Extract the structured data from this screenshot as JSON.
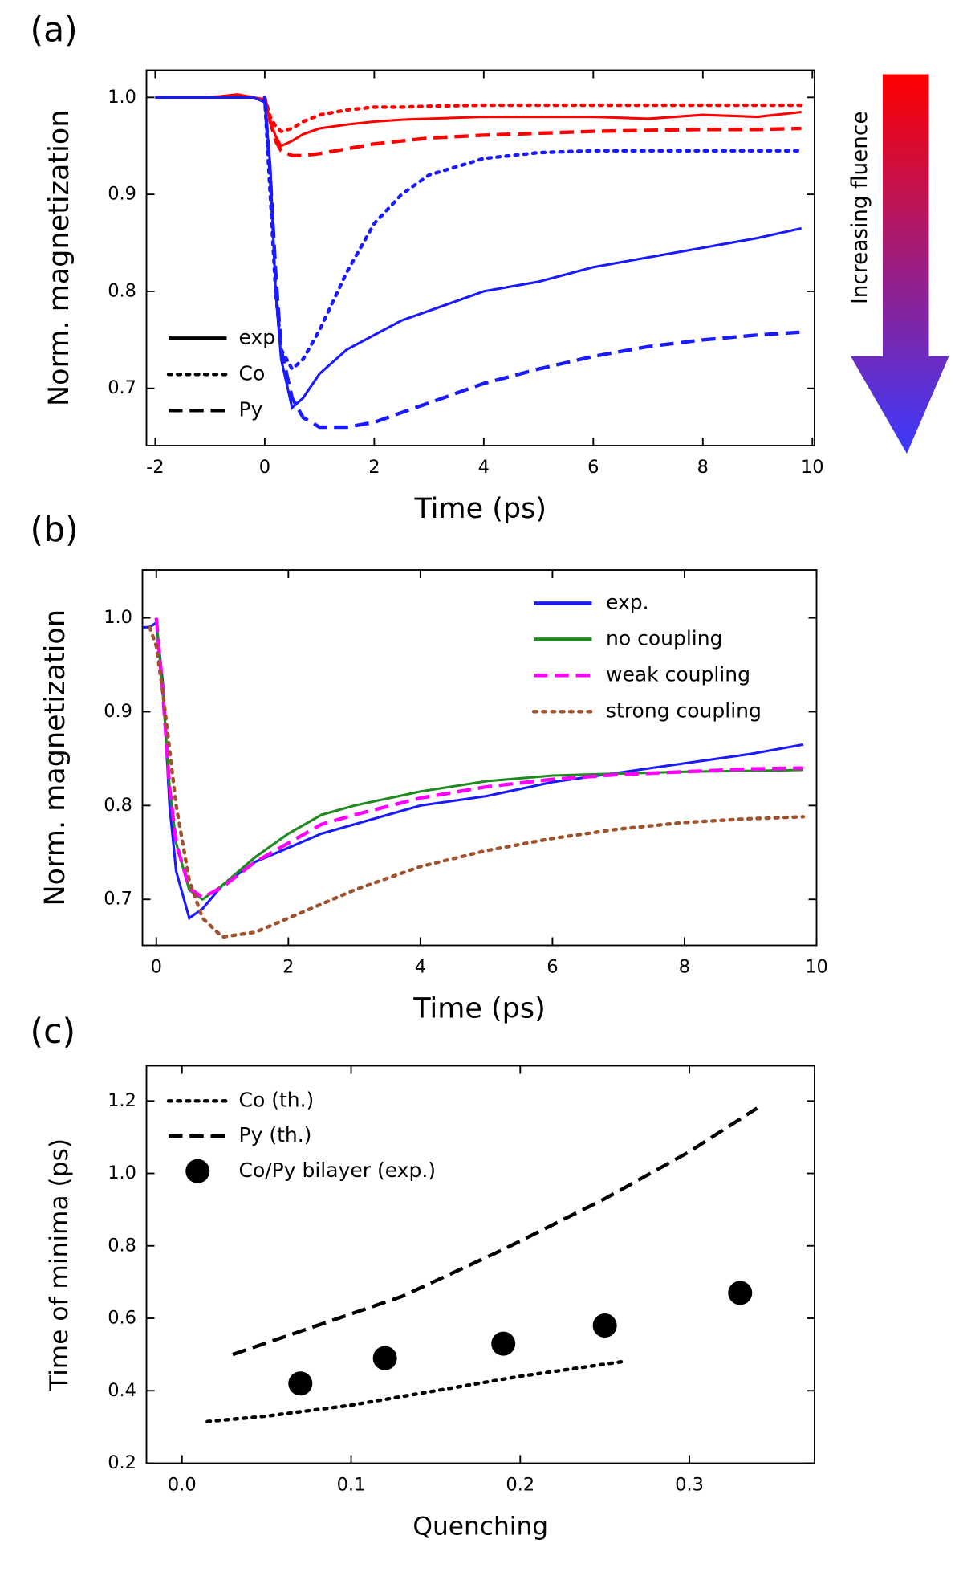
{
  "chart_data": [
    {
      "type": "line",
      "panel_label": "(a)",
      "xlabel": "Time (ps)",
      "ylabel": "Norm. magnetization",
      "xlim": [
        -2.16,
        10.04
      ],
      "ylim": [
        0.641,
        1.028
      ],
      "xticks": [
        -2,
        0,
        2,
        4,
        6,
        8,
        10
      ],
      "yticks": [
        0.7,
        0.8,
        0.9,
        {
          "value": 1.0,
          "label": "1.0"
        }
      ],
      "legend": "lower left",
      "legend_color": "#000000",
      "colorbar": {
        "label": "Increasing fluence",
        "colors": [
          "#ff0000",
          "#3a3aff"
        ]
      },
      "x": [
        -2,
        -1.5,
        -1,
        -0.5,
        -0.2,
        0,
        0.1,
        0.2,
        0.3,
        0.5,
        0.7,
        1,
        1.5,
        2,
        2.5,
        3,
        4,
        5,
        6,
        7,
        8,
        9,
        9.8
      ],
      "series": [
        {
          "name": "exp",
          "color": "#ff0000",
          "linestyle": "solid",
          "values": [
            1.0,
            1.0,
            1.0,
            1.003,
            1.0,
            0.998,
            0.975,
            0.96,
            0.95,
            0.955,
            0.962,
            0.968,
            0.972,
            0.975,
            0.977,
            0.978,
            0.98,
            0.98,
            0.98,
            0.978,
            0.982,
            0.98,
            0.985
          ]
        },
        {
          "name": "Co",
          "color": "#ff0000",
          "linestyle": "dotted",
          "values": [
            null,
            null,
            null,
            null,
            null,
            1.0,
            0.98,
            0.97,
            0.965,
            0.968,
            0.975,
            0.982,
            0.987,
            0.99,
            0.99,
            0.991,
            0.992,
            0.992,
            0.992,
            0.992,
            0.992,
            0.992,
            0.992
          ]
        },
        {
          "name": "Py",
          "color": "#ff0000",
          "linestyle": "dashed",
          "values": [
            null,
            null,
            null,
            null,
            null,
            1.0,
            0.975,
            0.955,
            0.945,
            0.94,
            0.94,
            0.942,
            0.947,
            0.952,
            0.955,
            0.958,
            0.961,
            0.963,
            0.965,
            0.966,
            0.967,
            0.967,
            0.968
          ]
        },
        {
          "name": "exp",
          "color": "#1a1aff",
          "linestyle": "solid",
          "values": [
            1.0,
            1.0,
            1.0,
            1.0,
            1.0,
            0.995,
            0.93,
            0.8,
            0.73,
            0.68,
            0.69,
            0.715,
            0.74,
            0.755,
            0.77,
            0.78,
            0.8,
            0.81,
            0.825,
            0.835,
            0.845,
            0.855,
            0.865
          ]
        },
        {
          "name": "Co",
          "color": "#1a1aff",
          "linestyle": "dotted",
          "values": [
            null,
            null,
            null,
            null,
            null,
            1.0,
            0.9,
            0.8,
            0.74,
            0.72,
            0.73,
            0.76,
            0.82,
            0.87,
            0.9,
            0.92,
            0.937,
            0.943,
            0.945,
            0.945,
            0.945,
            0.945,
            0.945
          ]
        },
        {
          "name": "Py",
          "color": "#1a1aff",
          "linestyle": "dashed",
          "values": [
            null,
            null,
            null,
            null,
            null,
            1.0,
            0.92,
            0.82,
            0.74,
            0.69,
            0.67,
            0.66,
            0.66,
            0.665,
            0.675,
            0.685,
            0.705,
            0.72,
            0.733,
            0.743,
            0.75,
            0.755,
            0.758
          ]
        }
      ]
    },
    {
      "type": "line",
      "panel_label": "(b)",
      "xlabel": "Time (ps)",
      "ylabel": "Norm. magnetization",
      "xlim": [
        -0.21,
        10
      ],
      "ylim": [
        0.651,
        1.051
      ],
      "xticks": [
        0,
        2,
        4,
        6,
        8,
        10
      ],
      "yticks": [
        0.7,
        0.8,
        0.9,
        {
          "value": 1.0,
          "label": "1.0"
        }
      ],
      "legend": "upper right",
      "x": [
        -0.2,
        -0.1,
        0,
        0.1,
        0.2,
        0.3,
        0.5,
        0.7,
        1,
        1.5,
        2,
        2.5,
        3,
        4,
        5,
        6,
        7,
        8,
        9,
        9.8
      ],
      "series": [
        {
          "name": "exp.",
          "color": "#1a1aff",
          "linestyle": "solid",
          "values": [
            0.99,
            0.99,
            0.995,
            0.93,
            0.8,
            0.73,
            0.68,
            0.69,
            0.715,
            0.74,
            0.755,
            0.77,
            0.78,
            0.8,
            0.81,
            0.825,
            0.835,
            0.845,
            0.855,
            0.865
          ]
        },
        {
          "name": "no coupling",
          "color": "#1f8a1f",
          "linestyle": "solid",
          "values": [
            null,
            null,
            1.0,
            0.92,
            0.82,
            0.76,
            0.71,
            0.7,
            0.715,
            0.745,
            0.77,
            0.79,
            0.8,
            0.815,
            0.826,
            0.832,
            0.834,
            0.836,
            0.837,
            0.838
          ]
        },
        {
          "name": "weak coupling",
          "color": "#ff00ff",
          "linestyle": "dashed",
          "values": [
            null,
            null,
            1.0,
            0.92,
            0.82,
            0.76,
            0.712,
            0.702,
            0.713,
            0.74,
            0.76,
            0.78,
            0.79,
            0.808,
            0.82,
            0.828,
            0.833,
            0.836,
            0.839,
            0.84
          ]
        },
        {
          "name": "strong coupling",
          "color": "#a0522d",
          "linestyle": "dotted",
          "values": [
            null,
            0.99,
            0.97,
            0.92,
            0.86,
            0.8,
            0.72,
            0.68,
            0.66,
            0.665,
            0.68,
            0.695,
            0.71,
            0.735,
            0.752,
            0.765,
            0.775,
            0.782,
            0.786,
            0.788
          ]
        }
      ]
    },
    {
      "type": "line",
      "panel_label": "(c)",
      "xlabel": "Quenching",
      "ylabel": "Time of minima (ps)",
      "xlim": [
        -0.021,
        0.374
      ],
      "ylim": [
        0.2,
        1.297
      ],
      "xticks": [
        {
          "value": 0,
          "label": "0.0"
        },
        0.1,
        0.2,
        0.3
      ],
      "yticks": [
        0.2,
        0.4,
        0.6,
        0.8,
        {
          "value": 1.0,
          "label": "1.0"
        },
        1.2
      ],
      "legend": "upper left",
      "series": [
        {
          "name": "Co (th.)",
          "color": "#000000",
          "linestyle": "dotted",
          "x": [
            0.015,
            0.05,
            0.1,
            0.15,
            0.2,
            0.26
          ],
          "values": [
            0.315,
            0.33,
            0.36,
            0.4,
            0.44,
            0.48
          ]
        },
        {
          "name": "Py (th.)",
          "color": "#000000",
          "linestyle": "dashed",
          "x": [
            0.03,
            0.08,
            0.13,
            0.19,
            0.25,
            0.3,
            0.34
          ],
          "values": [
            0.5,
            0.58,
            0.66,
            0.79,
            0.93,
            1.06,
            1.18
          ]
        },
        {
          "name": "Co/Py bilayer (exp.)",
          "color": "#000000",
          "type": "scatter",
          "x": [
            0.07,
            0.12,
            0.19,
            0.25,
            0.33
          ],
          "values": [
            0.42,
            0.49,
            0.53,
            0.58,
            0.67
          ]
        }
      ]
    }
  ]
}
